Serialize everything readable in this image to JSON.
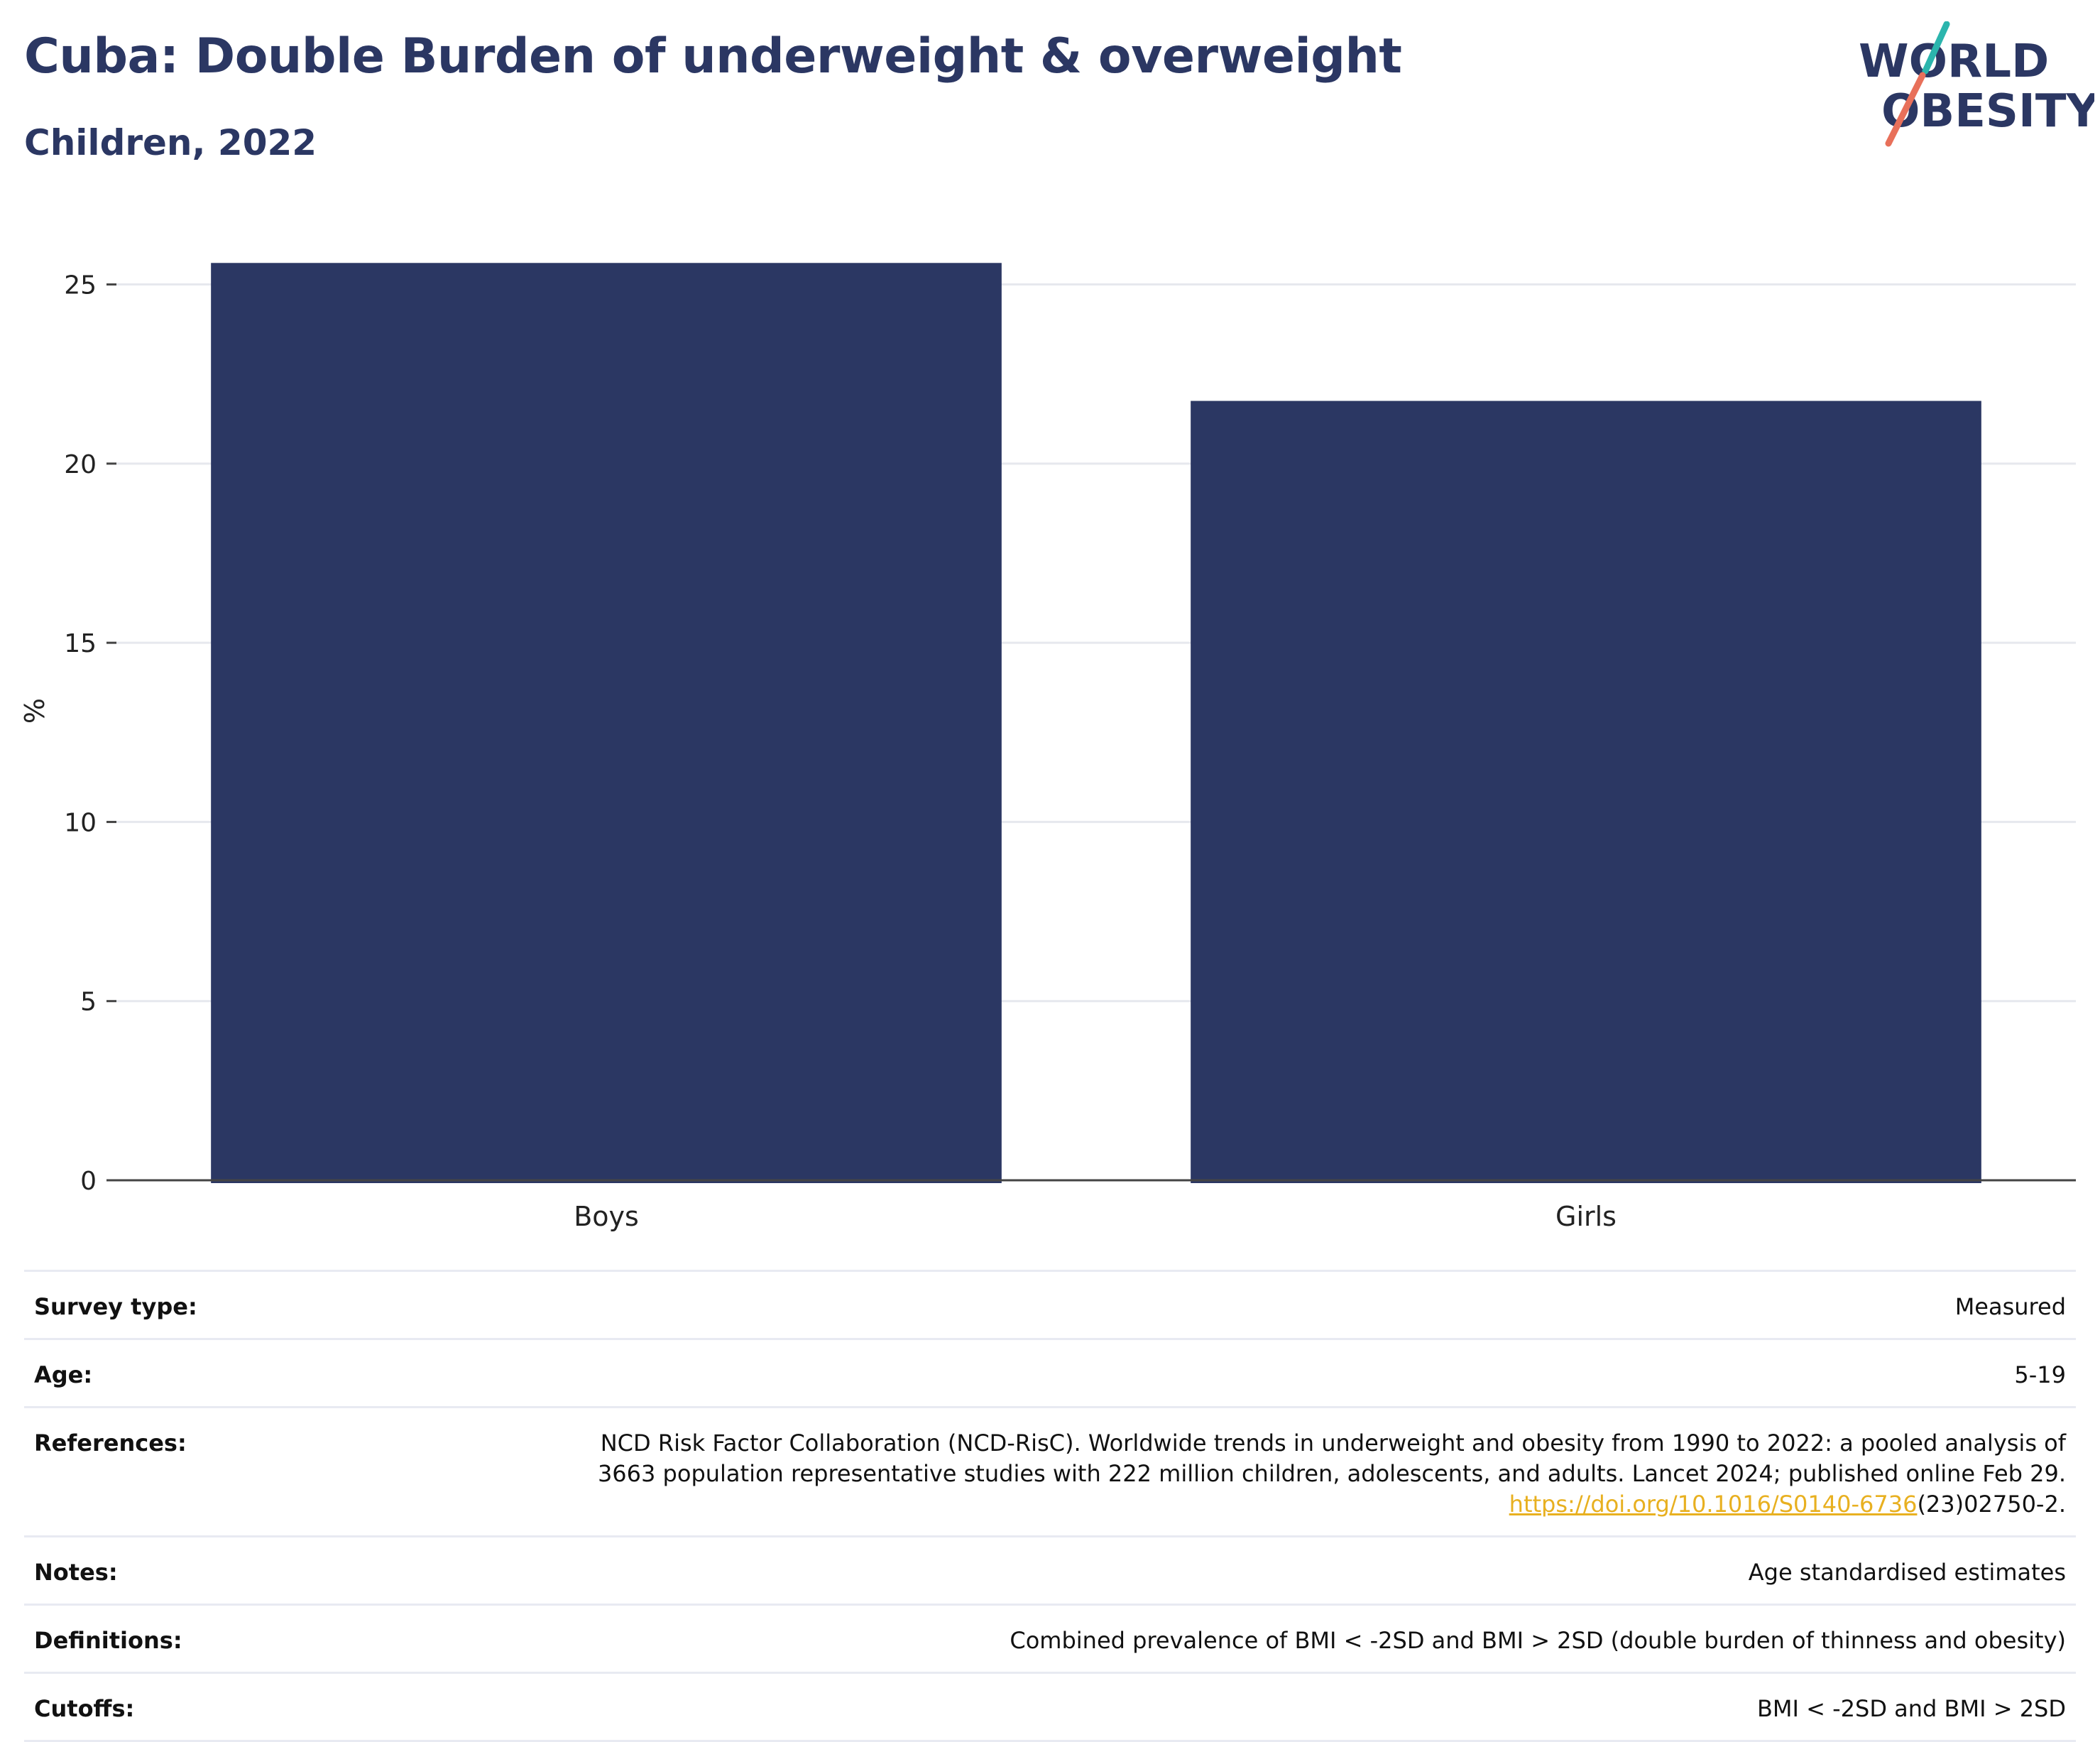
{
  "header": {
    "title": "Cuba: Double Burden of underweight & overweight",
    "subtitle": "Children, 2022"
  },
  "logo": {
    "line1": "WORLD",
    "line2": "OBESITY",
    "colors": {
      "text": "#2b3763",
      "stroke_top": "#2bb5ad",
      "stroke_bottom": "#e8705a"
    }
  },
  "chart_data": {
    "type": "bar",
    "categories": [
      "Boys",
      "Girls"
    ],
    "values": [
      25.6,
      21.75
    ],
    "title": "Cuba: Double Burden of underweight & overweight",
    "subtitle": "Children, 2022",
    "xlabel": "",
    "ylabel": "%",
    "ylim": [
      0,
      26.2
    ],
    "yticks": [
      0,
      5,
      10,
      15,
      20,
      25
    ],
    "grid": true,
    "legend": "none",
    "bar_color": "#2b3763"
  },
  "meta": {
    "rows": [
      {
        "label": "Survey type:",
        "value": "Measured"
      },
      {
        "label": "Age:",
        "value": "5-19"
      },
      {
        "label": "References:",
        "value_line1": "NCD Risk Factor Collaboration (NCD-RisC). Worldwide trends in underweight and obesity from 1990 to 2022: a pooled analysis of",
        "value_line2": "3663 population representative studies with 222 million children, adolescents, and adults. Lancet 2024; published online Feb 29.",
        "link_text": "https://doi.org/10.1016/S0140-6736",
        "link_suffix": "(23)02750-2."
      },
      {
        "label": "Notes:",
        "value": "Age standardised estimates"
      },
      {
        "label": "Definitions:",
        "value": "Combined prevalence of BMI < -2SD and BMI > 2SD (double burden of thinness and obesity)"
      },
      {
        "label": "Cutoffs:",
        "value": "BMI < -2SD and BMI > 2SD"
      }
    ]
  }
}
